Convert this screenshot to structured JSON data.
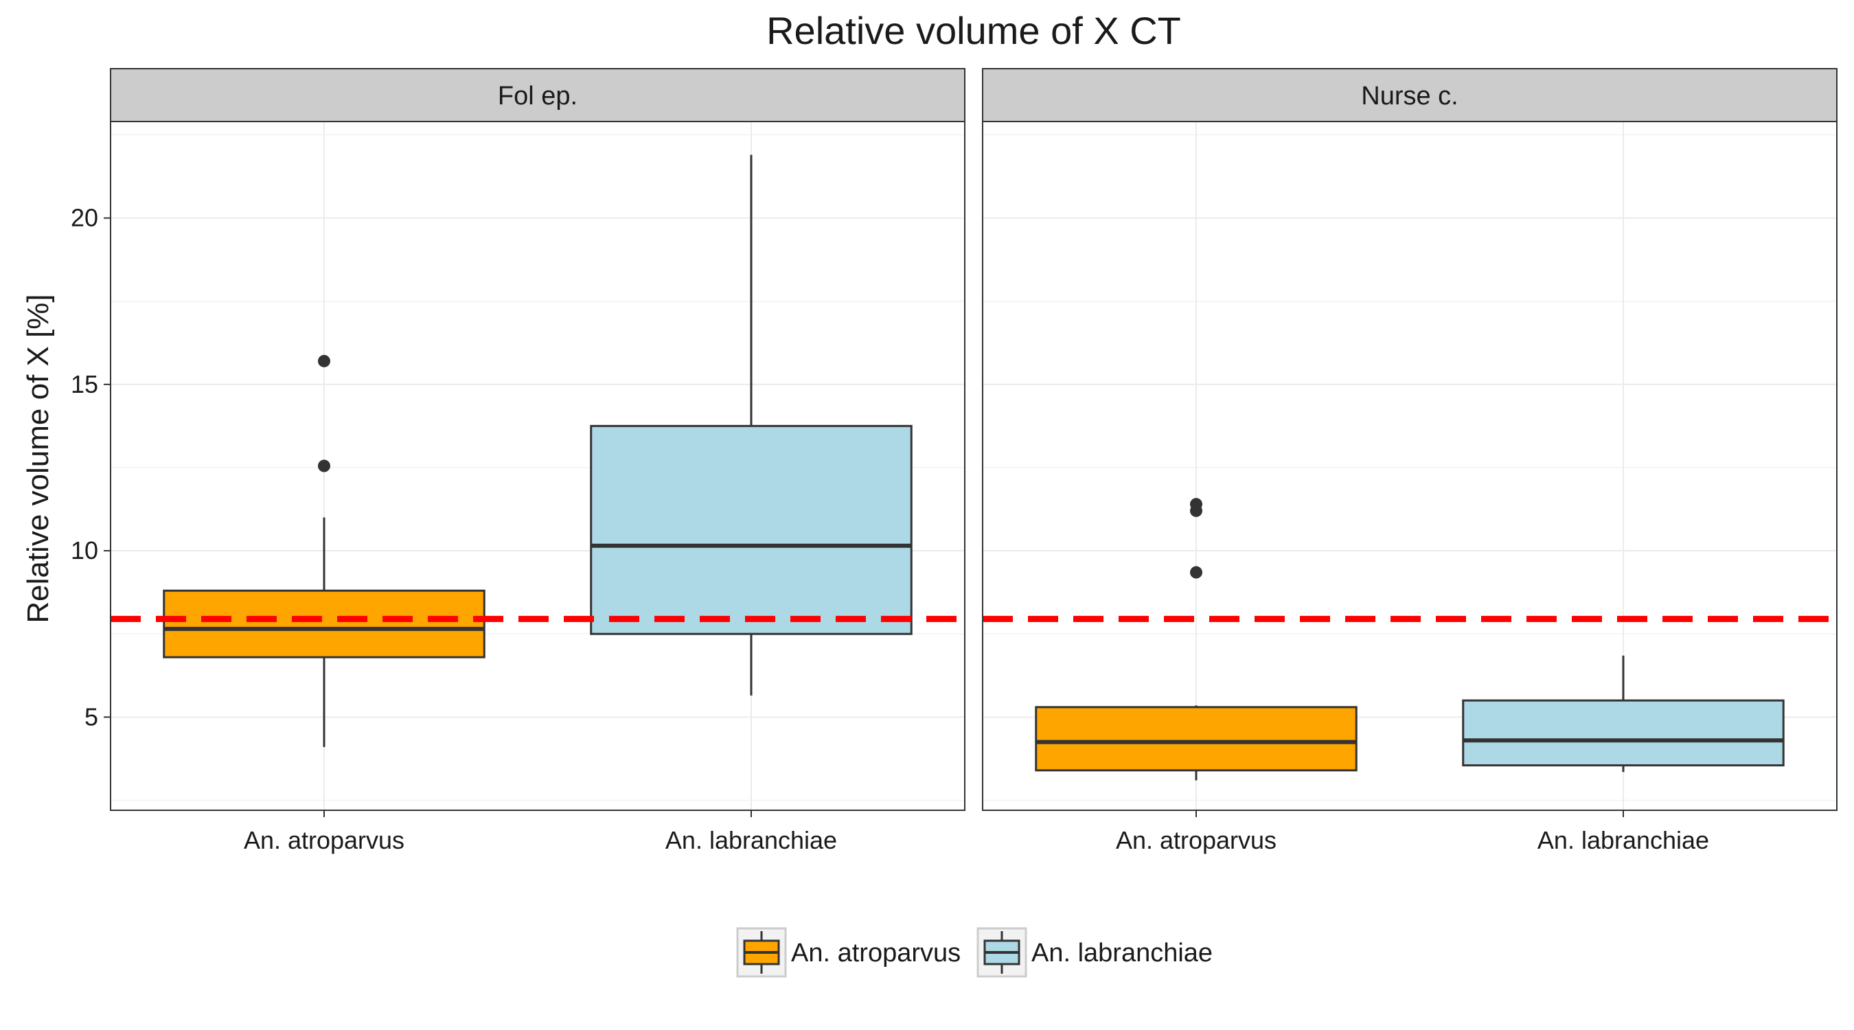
{
  "chart_data": {
    "type": "box",
    "title": "Relative volume of X CT",
    "ylabel": "Relative volume of X [%]",
    "xlabel": "",
    "ylim": [
      2.2,
      22.9
    ],
    "yticks": [
      5,
      10,
      15,
      20
    ],
    "grid": true,
    "legend_position": "bottom",
    "reference_line": {
      "y": 7.95,
      "color": "#ff0000",
      "style": "dashed"
    },
    "categories": [
      "An. atroparvus",
      "An. labranchiae"
    ],
    "series": [
      {
        "name": "An. atroparvus",
        "color": "#ffa500"
      },
      {
        "name": "An. labranchiae",
        "color": "#add8e6"
      }
    ],
    "panels": [
      {
        "label": "Fol ep.",
        "boxes": [
          {
            "category": "An. atroparvus",
            "whisker_low": 4.1,
            "q1": 6.8,
            "median": 7.65,
            "q3": 8.8,
            "whisker_high": 11.0,
            "outliers": [
              12.55,
              15.7
            ]
          },
          {
            "category": "An. labranchiae",
            "whisker_low": 5.65,
            "q1": 7.5,
            "median": 10.15,
            "q3": 13.75,
            "whisker_high": 21.9,
            "outliers": []
          }
        ]
      },
      {
        "label": "Nurse c.",
        "boxes": [
          {
            "category": "An. atroparvus",
            "whisker_low": 3.1,
            "q1": 3.4,
            "median": 4.25,
            "q3": 5.3,
            "whisker_high": 5.35,
            "outliers": [
              9.35,
              11.2,
              11.4
            ]
          },
          {
            "category": "An. labranchiae",
            "whisker_low": 3.35,
            "q1": 3.55,
            "median": 4.3,
            "q3": 5.5,
            "whisker_high": 6.85,
            "outliers": []
          }
        ]
      }
    ]
  }
}
